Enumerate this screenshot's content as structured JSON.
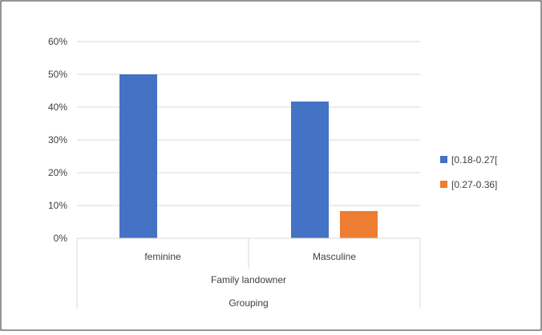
{
  "chart_data": {
    "type": "bar",
    "categories": [
      "feminine",
      "Masculine"
    ],
    "group_label": "Family landowner",
    "outer_group_label": "Grouping",
    "series": [
      {
        "name": "[0.18-0.27[",
        "values": [
          50,
          41.7
        ],
        "color": "#4472C4"
      },
      {
        "name": "[0.27-0.36]",
        "values": [
          0,
          8.3
        ],
        "color": "#ED7D31"
      }
    ],
    "ylim": [
      0,
      60
    ],
    "yticks": [
      0,
      10,
      20,
      30,
      40,
      50,
      60
    ],
    "ytick_labels": [
      "0%",
      "10%",
      "20%",
      "30%",
      "40%",
      "50%",
      "60%"
    ],
    "grid": true,
    "legend_position": "right"
  }
}
